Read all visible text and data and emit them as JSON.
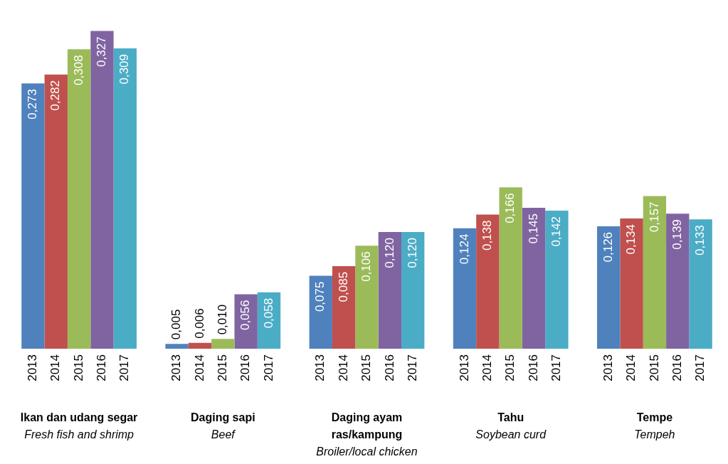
{
  "chart_data": {
    "type": "bar",
    "categories": [
      "Ikan dan udang segar\nFresh fish and shrimp",
      "Daging sapi\nBeef",
      "Daging ayam\nras/kampung\nBroiler/local chicken",
      "Tahu\nSoybean curd",
      "Tempe\nTempeh"
    ],
    "series": [
      {
        "name": "2013",
        "color": "#4f81bd",
        "values": [
          0.273,
          0.005,
          0.075,
          0.124,
          0.126
        ],
        "value_labels": [
          "0,273",
          "0,005",
          "0,075",
          "0,124",
          "0,126"
        ]
      },
      {
        "name": "2014",
        "color": "#c0504d",
        "values": [
          0.282,
          0.006,
          0.085,
          0.138,
          0.134
        ],
        "value_labels": [
          "0,282",
          "0,006",
          "0,085",
          "0,138",
          "0,134"
        ]
      },
      {
        "name": "2015",
        "color": "#9bbb59",
        "values": [
          0.308,
          0.01,
          0.106,
          0.166,
          0.157
        ],
        "value_labels": [
          "0,308",
          "0,010",
          "0,106",
          "0,166",
          "0,157"
        ]
      },
      {
        "name": "2016",
        "color": "#8064a2",
        "values": [
          0.327,
          0.056,
          0.12,
          0.145,
          0.139
        ],
        "value_labels": [
          "0,327",
          "0,056",
          "0,120",
          "0,145",
          "0,139"
        ]
      },
      {
        "name": "2017",
        "color": "#4bacc6",
        "values": [
          0.309,
          0.058,
          0.12,
          0.142,
          0.133
        ],
        "value_labels": [
          "0,309",
          "0,058",
          "0,120",
          "0,142",
          "0,133"
        ]
      }
    ]
  }
}
